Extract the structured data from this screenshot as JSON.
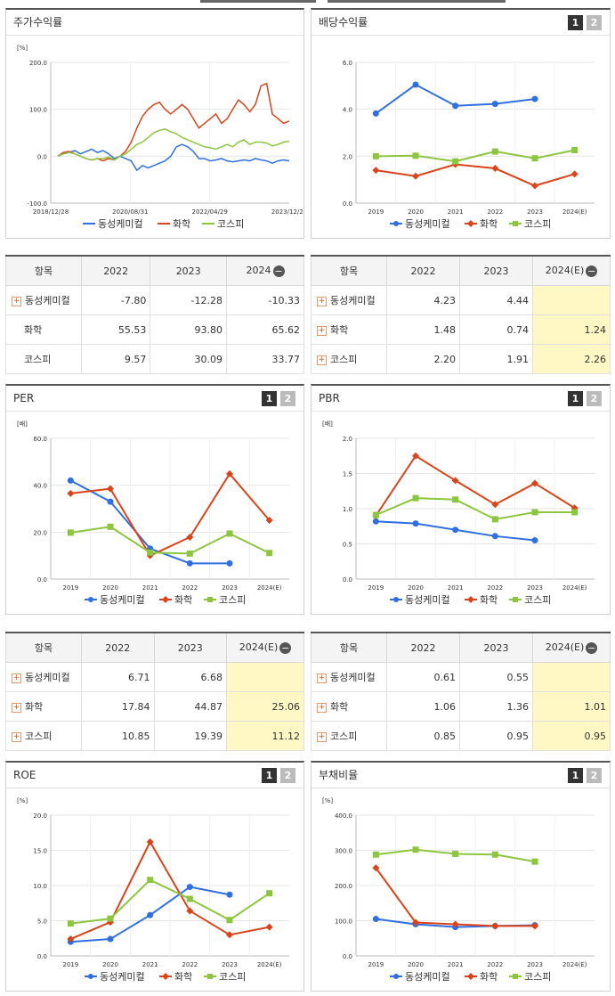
{
  "colors": {
    "dongsung": "#2f6fe0",
    "hwahak": "#d9441a",
    "kospi": "#8cc63f"
  },
  "ui": {
    "minus": "−",
    "plus": "+",
    "page1": "1",
    "page2": "2"
  },
  "panels": {
    "stock": {
      "title": "주가수익률"
    },
    "div": {
      "title": "배당수익률"
    },
    "per": {
      "title": "PER"
    },
    "pbr": {
      "title": "PBR"
    },
    "roe": {
      "title": "ROE"
    },
    "debt": {
      "title": "부채비율"
    }
  },
  "tables": {
    "stock": {
      "headers": [
        "항목",
        "2022",
        "2023",
        "2024"
      ],
      "rows": [
        {
          "name": "동성케미컬",
          "plus": true,
          "v": [
            "-7.80",
            "-12.28",
            "-10.33"
          ]
        },
        {
          "name": "화학",
          "plus": false,
          "v": [
            "55.53",
            "93.80",
            "65.62"
          ]
        },
        {
          "name": "코스피",
          "plus": false,
          "v": [
            "9.57",
            "30.09",
            "33.77"
          ]
        }
      ]
    },
    "div": {
      "headers": [
        "항목",
        "2022",
        "2023",
        "2024(E)"
      ],
      "rows": [
        {
          "name": "동성케미컬",
          "plus": true,
          "v": [
            "4.23",
            "4.44",
            ""
          ]
        },
        {
          "name": "화학",
          "plus": true,
          "v": [
            "1.48",
            "0.74",
            "1.24"
          ]
        },
        {
          "name": "코스피",
          "plus": true,
          "v": [
            "2.20",
            "1.91",
            "2.26"
          ]
        }
      ]
    },
    "per": {
      "headers": [
        "항목",
        "2022",
        "2023",
        "2024(E)"
      ],
      "rows": [
        {
          "name": "동성케미컬",
          "plus": true,
          "v": [
            "6.71",
            "6.68",
            ""
          ]
        },
        {
          "name": "화학",
          "plus": true,
          "v": [
            "17.84",
            "44.87",
            "25.06"
          ]
        },
        {
          "name": "코스피",
          "plus": true,
          "v": [
            "10.85",
            "19.39",
            "11.12"
          ]
        }
      ]
    },
    "pbr": {
      "headers": [
        "항목",
        "2022",
        "2023",
        "2024(E)"
      ],
      "rows": [
        {
          "name": "동성케미컬",
          "plus": true,
          "v": [
            "0.61",
            "0.55",
            ""
          ]
        },
        {
          "name": "화학",
          "plus": true,
          "v": [
            "1.06",
            "1.36",
            "1.01"
          ]
        },
        {
          "name": "코스피",
          "plus": true,
          "v": [
            "0.85",
            "0.95",
            "0.95"
          ]
        }
      ]
    }
  },
  "chart_data": [
    {
      "id": "stock",
      "type": "line",
      "unit": "[%]",
      "ylim": [
        -100,
        200
      ],
      "yticks": [
        "200.0",
        "100.0",
        "0.0",
        "-100.0"
      ],
      "xticks": [
        "2018/12/28",
        "2020/08/31",
        "2022/04/29",
        "2023/12/28"
      ],
      "series": [
        {
          "name": "동성케미컬",
          "values": [
            0,
            5,
            8,
            12,
            5,
            10,
            15,
            8,
            12,
            5,
            -5,
            0,
            -5,
            -10,
            -30,
            -20,
            -25,
            -20,
            -15,
            -10,
            0,
            20,
            25,
            20,
            10,
            -5,
            -5,
            -10,
            -8,
            -5,
            -10,
            -12,
            -10,
            -8,
            -10,
            -5,
            -8,
            -10,
            -15,
            -10,
            -8,
            -10
          ]
        },
        {
          "name": "화학",
          "values": [
            0,
            8,
            10,
            5,
            0,
            -5,
            -8,
            -5,
            -10,
            -5,
            -8,
            0,
            10,
            30,
            60,
            85,
            100,
            110,
            115,
            100,
            90,
            100,
            110,
            100,
            80,
            60,
            70,
            80,
            90,
            70,
            80,
            100,
            120,
            110,
            95,
            110,
            150,
            155,
            90,
            80,
            70,
            75
          ]
        },
        {
          "name": "코스피",
          "values": [
            0,
            5,
            8,
            5,
            0,
            -5,
            -8,
            -5,
            -5,
            -2,
            -8,
            0,
            5,
            15,
            25,
            30,
            40,
            50,
            55,
            58,
            52,
            48,
            40,
            35,
            30,
            25,
            20,
            18,
            15,
            20,
            25,
            20,
            30,
            35,
            25,
            30,
            30,
            28,
            22,
            25,
            30,
            32
          ]
        }
      ]
    },
    {
      "id": "div",
      "type": "line",
      "unit": "",
      "ylim": [
        0,
        6
      ],
      "yticks": [
        "6.0",
        "4.0",
        "2.0",
        "0.0"
      ],
      "categories": [
        "2019",
        "2020",
        "2021",
        "2022",
        "2023",
        "2024(E)"
      ],
      "series": [
        {
          "name": "동성케미컬",
          "values": [
            3.82,
            5.05,
            4.15,
            4.23,
            4.44,
            null
          ]
        },
        {
          "name": "화학",
          "values": [
            1.4,
            1.15,
            1.65,
            1.48,
            0.74,
            1.24
          ]
        },
        {
          "name": "코스피",
          "values": [
            2.0,
            2.02,
            1.78,
            2.2,
            1.91,
            2.26
          ]
        }
      ]
    },
    {
      "id": "per",
      "type": "line",
      "unit": "[배]",
      "ylim": [
        0,
        60
      ],
      "yticks": [
        "60.0",
        "40.0",
        "20.0",
        "0.0"
      ],
      "categories": [
        "2019",
        "2020",
        "2021",
        "2022",
        "2023",
        "2024(E)"
      ],
      "series": [
        {
          "name": "동성케미컬",
          "values": [
            42.0,
            33.0,
            13.0,
            6.71,
            6.68,
            null
          ]
        },
        {
          "name": "화학",
          "values": [
            36.5,
            38.5,
            10.0,
            17.84,
            44.87,
            25.06
          ]
        },
        {
          "name": "코스피",
          "values": [
            19.8,
            22.3,
            11.3,
            10.85,
            19.39,
            11.12
          ]
        }
      ]
    },
    {
      "id": "pbr",
      "type": "line",
      "unit": "[배]",
      "ylim": [
        0,
        2
      ],
      "yticks": [
        "2.0",
        "1.5",
        "1.0",
        "0.5",
        "0.0"
      ],
      "categories": [
        "2019",
        "2020",
        "2021",
        "2022",
        "2023",
        "2024(E)"
      ],
      "series": [
        {
          "name": "동성케미컬",
          "values": [
            0.82,
            0.79,
            0.7,
            0.61,
            0.55,
            null
          ]
        },
        {
          "name": "화학",
          "values": [
            0.9,
            1.75,
            1.4,
            1.06,
            1.36,
            1.01
          ]
        },
        {
          "name": "코스피",
          "values": [
            0.91,
            1.15,
            1.13,
            0.85,
            0.95,
            0.95
          ]
        }
      ]
    },
    {
      "id": "roe",
      "type": "line",
      "unit": "[%]",
      "ylim": [
        0,
        20
      ],
      "yticks": [
        "20.0",
        "15.0",
        "10.0",
        "5.0",
        "0.0"
      ],
      "categories": [
        "2019",
        "2020",
        "2021",
        "2022",
        "2023",
        "2024(E)"
      ],
      "series": [
        {
          "name": "동성케미컬",
          "values": [
            2.0,
            2.4,
            5.8,
            9.8,
            8.7,
            null
          ]
        },
        {
          "name": "화학",
          "values": [
            2.4,
            4.8,
            16.2,
            6.4,
            3.0,
            4.1
          ]
        },
        {
          "name": "코스피",
          "values": [
            4.6,
            5.3,
            10.8,
            8.1,
            5.1,
            8.9
          ]
        }
      ]
    },
    {
      "id": "debt",
      "type": "line",
      "unit": "[%]",
      "ylim": [
        0,
        400
      ],
      "yticks": [
        "400.0",
        "300.0",
        "200.0",
        "100.0",
        "0.0"
      ],
      "categories": [
        "2019",
        "2020",
        "2021",
        "2022",
        "2023",
        "2024(E)"
      ],
      "series": [
        {
          "name": "동성케미컬",
          "values": [
            105,
            90,
            82,
            85,
            87,
            null
          ]
        },
        {
          "name": "화학",
          "values": [
            250,
            95,
            90,
            85,
            85,
            null
          ]
        },
        {
          "name": "코스피",
          "values": [
            288,
            302,
            290,
            288,
            268,
            null
          ]
        }
      ]
    }
  ]
}
